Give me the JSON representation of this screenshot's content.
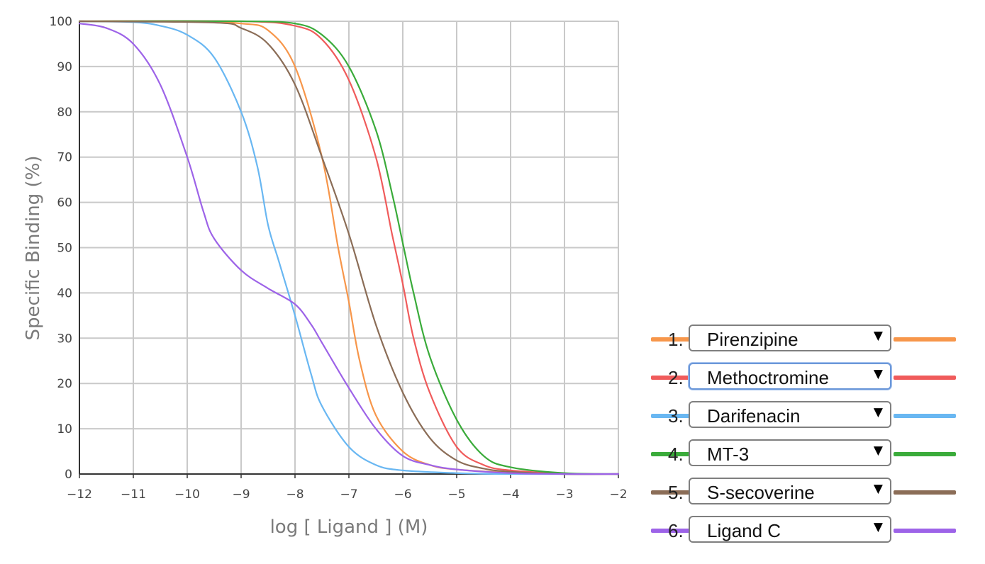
{
  "chart_data": {
    "type": "line",
    "title": "",
    "xlabel": "log [ Ligand ] (M)",
    "ylabel": "Specific Binding (%)",
    "xlim": [
      -12,
      -2
    ],
    "ylim": [
      0,
      100
    ],
    "xticks": [
      -12,
      -11,
      -10,
      -9,
      -8,
      -7,
      -6,
      -5,
      -4,
      -3,
      -2
    ],
    "xtick_labels": [
      "−12",
      "−11",
      "−10",
      "−9",
      "−8",
      "−7",
      "−6",
      "−5",
      "−4",
      "−3",
      "−2"
    ],
    "yticks": [
      0,
      10,
      20,
      30,
      40,
      50,
      60,
      70,
      80,
      90,
      100
    ],
    "ytick_labels": [
      "0",
      "10",
      "20",
      "30",
      "40",
      "50",
      "60",
      "70",
      "80",
      "90",
      "100"
    ],
    "grid": true,
    "legend_position": "right",
    "series": [
      {
        "name": "Pirenzipine",
        "color": "#f7964a",
        "points": [
          [
            -12,
            100
          ],
          [
            -10,
            100
          ],
          [
            -9,
            99.5
          ],
          [
            -8.5,
            98
          ],
          [
            -8,
            90
          ],
          [
            -7.5,
            70
          ],
          [
            -7.2,
            50
          ],
          [
            -7,
            38
          ],
          [
            -6.8,
            25
          ],
          [
            -6.5,
            13
          ],
          [
            -6,
            5
          ],
          [
            -5.5,
            2
          ],
          [
            -5,
            1
          ],
          [
            -4,
            0.3
          ],
          [
            -3,
            0
          ],
          [
            -2,
            0
          ]
        ]
      },
      {
        "name": "Methoctromine",
        "color": "#f05b5b",
        "points": [
          [
            -12,
            100
          ],
          [
            -9,
            100
          ],
          [
            -8,
            99
          ],
          [
            -7.5,
            96
          ],
          [
            -7,
            87
          ],
          [
            -6.5,
            70
          ],
          [
            -6.2,
            53
          ],
          [
            -6,
            42
          ],
          [
            -5.8,
            30
          ],
          [
            -5.5,
            18
          ],
          [
            -5,
            6
          ],
          [
            -4.5,
            2
          ],
          [
            -4,
            0.8
          ],
          [
            -3,
            0.1
          ],
          [
            -2,
            0
          ]
        ]
      },
      {
        "name": "Darifenacin",
        "color": "#69b7f2",
        "points": [
          [
            -12,
            100
          ],
          [
            -11,
            99.8
          ],
          [
            -10.5,
            99
          ],
          [
            -10,
            97
          ],
          [
            -9.5,
            92
          ],
          [
            -9,
            80
          ],
          [
            -8.7,
            68
          ],
          [
            -8.5,
            55
          ],
          [
            -8.3,
            47
          ],
          [
            -8,
            35
          ],
          [
            -7.7,
            22
          ],
          [
            -7.5,
            15
          ],
          [
            -7,
            6
          ],
          [
            -6.5,
            2
          ],
          [
            -6,
            0.8
          ],
          [
            -5,
            0.2
          ],
          [
            -4,
            0
          ],
          [
            -2,
            0
          ]
        ]
      },
      {
        "name": "MT-3",
        "color": "#3aab3a",
        "points": [
          [
            -12,
            100
          ],
          [
            -9,
            100
          ],
          [
            -8,
            99.5
          ],
          [
            -7.5,
            97
          ],
          [
            -7,
            90
          ],
          [
            -6.5,
            76
          ],
          [
            -6.2,
            62
          ],
          [
            -6,
            51
          ],
          [
            -5.8,
            40
          ],
          [
            -5.5,
            26
          ],
          [
            -5,
            12
          ],
          [
            -4.5,
            4
          ],
          [
            -4,
            1.5
          ],
          [
            -3,
            0.2
          ],
          [
            -2,
            0
          ]
        ]
      },
      {
        "name": "S-secoverine",
        "color": "#8b6d57",
        "points": [
          [
            -12,
            100
          ],
          [
            -9.5,
            99.7
          ],
          [
            -9,
            98.5
          ],
          [
            -8.5,
            95
          ],
          [
            -8,
            86
          ],
          [
            -7.5,
            70
          ],
          [
            -7,
            53
          ],
          [
            -6.5,
            33
          ],
          [
            -6,
            18
          ],
          [
            -5.5,
            8
          ],
          [
            -5,
            3
          ],
          [
            -4.5,
            1.2
          ],
          [
            -4,
            0.5
          ],
          [
            -3,
            0
          ],
          [
            -2,
            0
          ]
        ]
      },
      {
        "name": "Ligand C",
        "color": "#9d63e8",
        "points": [
          [
            -12,
            99.5
          ],
          [
            -11.5,
            98.5
          ],
          [
            -11,
            95
          ],
          [
            -10.5,
            86
          ],
          [
            -10,
            70
          ],
          [
            -9.7,
            58
          ],
          [
            -9.5,
            52
          ],
          [
            -9,
            45
          ],
          [
            -8.5,
            41
          ],
          [
            -8,
            37.5
          ],
          [
            -7.7,
            33
          ],
          [
            -7.5,
            29
          ],
          [
            -7,
            19
          ],
          [
            -6.5,
            10
          ],
          [
            -6,
            4
          ],
          [
            -5.5,
            2
          ],
          [
            -5,
            1
          ],
          [
            -4,
            0.2
          ],
          [
            -3,
            0
          ],
          [
            -2,
            0
          ]
        ]
      }
    ]
  },
  "legend": {
    "items": [
      {
        "number": "1.",
        "label": "Pirenzipine",
        "color": "#f7964a",
        "focused": false
      },
      {
        "number": "2.",
        "label": "Methoctromine",
        "color": "#f05b5b",
        "focused": true
      },
      {
        "number": "3.",
        "label": "Darifenacin",
        "color": "#69b7f2",
        "focused": false
      },
      {
        "number": "4.",
        "label": "MT-3",
        "color": "#3aab3a",
        "focused": false
      },
      {
        "number": "5.",
        "label": "S-secoverine",
        "color": "#8b6d57",
        "focused": false
      },
      {
        "number": "6.",
        "label": "Ligand C",
        "color": "#9d63e8",
        "focused": false
      }
    ],
    "arrow_glyph": "▼"
  },
  "colors": {
    "grid": "#c9c9c9",
    "axis": "#333333"
  }
}
